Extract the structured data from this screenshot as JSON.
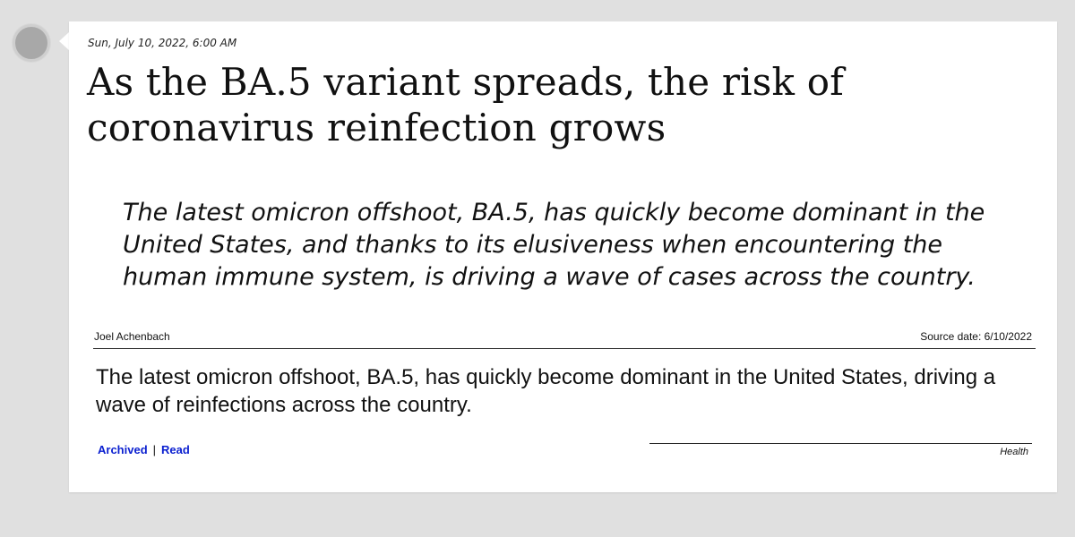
{
  "post": {
    "date": "Sun, July 10, 2022, 6:00 AM",
    "headline": "As the BA.5 variant spreads, the risk of coronavirus reinfection grows",
    "summary": "The latest omicron offshoot, BA.5, has quickly become dominant in the United States, and thanks to its elusiveness when encountering the human immune system, is driving a wave of cases across the country.",
    "author": "Joel Achenbach",
    "source_date": "Source date: 6/10/2022",
    "body": "The latest omicron offshoot, BA.5, has quickly become dominant in the United States, driving a wave of reinfections across the country.",
    "links": {
      "archived": "Archived",
      "separator": "|",
      "read": "Read"
    },
    "category": "Health"
  },
  "colors": {
    "background": "#e0e0e0",
    "card": "#ffffff",
    "link": "#0a1fd0",
    "avatar": "#a8a8a8"
  }
}
